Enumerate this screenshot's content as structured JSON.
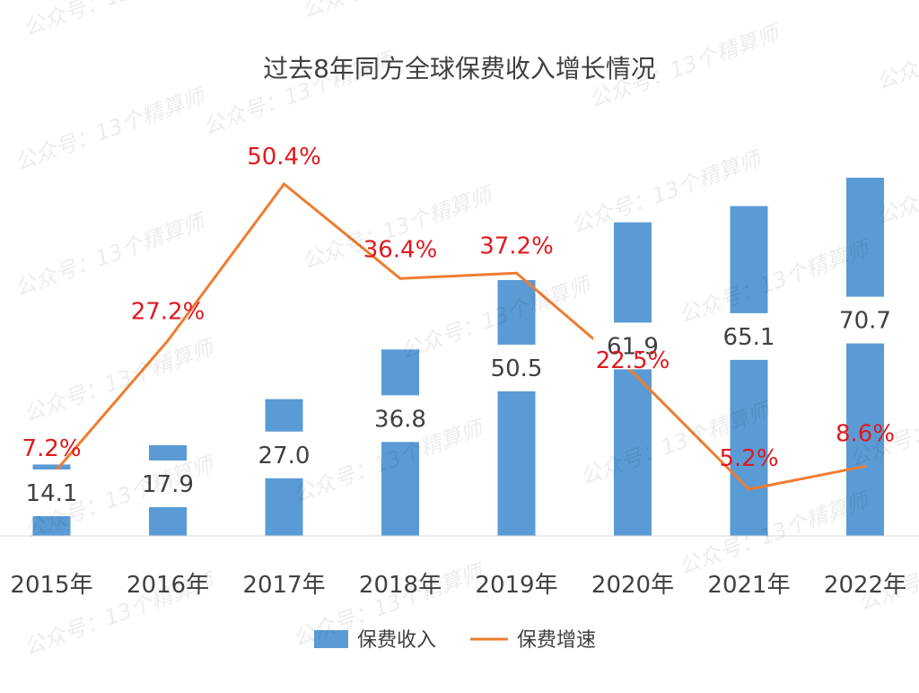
{
  "chart_data": {
    "type": "bar",
    "title": "过去8年同方全球保费收入增长情况",
    "categories": [
      "2015年",
      "2016年",
      "2017年",
      "2018年",
      "2019年",
      "2020年",
      "2021年",
      "2022年"
    ],
    "series": [
      {
        "name": "保费收入",
        "type": "bar",
        "values": [
          14.1,
          17.9,
          27.0,
          36.8,
          50.5,
          61.9,
          65.1,
          70.7
        ],
        "labels": [
          "14.1",
          "17.9",
          "27.0",
          "36.8",
          "50.5",
          "61.9",
          "65.1",
          "70.7"
        ],
        "color": "#5b9bd5"
      },
      {
        "name": "保费增速",
        "type": "line",
        "values": [
          7.2,
          27.2,
          50.4,
          36.4,
          37.2,
          22.5,
          5.2,
          8.6
        ],
        "labels": [
          "7.2%",
          "27.2%",
          "50.4%",
          "36.4%",
          "37.2%",
          "22.5%",
          "5.2%",
          "8.6%"
        ],
        "color": "#ed7d31"
      }
    ],
    "ylim": [
      0,
      73
    ],
    "y2lim": [
      -10,
      64
    ],
    "grid": false,
    "legend_position": "bottom"
  },
  "watermark": "公众号：13个精算师"
}
